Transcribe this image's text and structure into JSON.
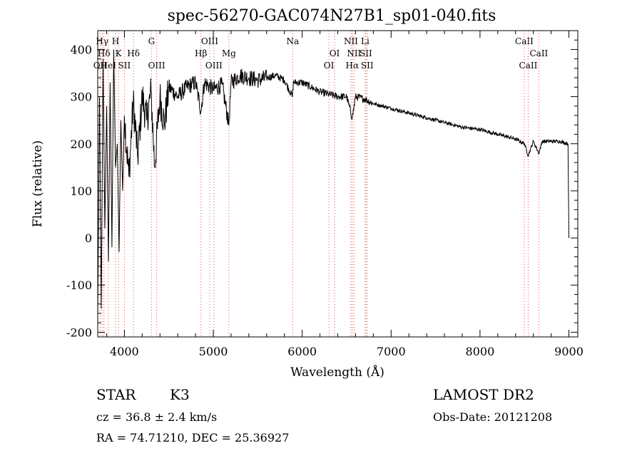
{
  "chart_data": {
    "type": "line",
    "title": "spec-56270-GAC074N27B1_sp01-040.fits",
    "xlabel": "Wavelength (Å)",
    "ylabel": "Flux (relative)",
    "xlim": [
      3700,
      9100
    ],
    "ylim": [
      -210,
      440
    ],
    "xticks": [
      4000,
      5000,
      6000,
      7000,
      8000,
      9000
    ],
    "xtick_labels": [
      "4000",
      "5000",
      "6000",
      "7000",
      "8000",
      "9000"
    ],
    "yticks": [
      -200,
      -100,
      0,
      100,
      200,
      300,
      400
    ],
    "ytick_labels": [
      "-200",
      "-100",
      "0",
      "100",
      "200",
      "300",
      "400"
    ],
    "grid": false,
    "spectrum": {
      "x": [
        3700,
        3720,
        3740,
        3760,
        3780,
        3800,
        3820,
        3840,
        3860,
        3880,
        3900,
        3920,
        3940,
        3960,
        3980,
        4000,
        4050,
        4100,
        4150,
        4200,
        4250,
        4300,
        4340,
        4400,
        4450,
        4500,
        4600,
        4700,
        4800,
        4861,
        4900,
        5000,
        5100,
        5175,
        5200,
        5300,
        5400,
        5500,
        5600,
        5700,
        5800,
        5890,
        5900,
        6000,
        6100,
        6200,
        6300,
        6400,
        6500,
        6563,
        6600,
        6700,
        6800,
        6900,
        7000,
        7200,
        7400,
        7600,
        7800,
        8000,
        8200,
        8400,
        8500,
        8542,
        8600,
        8662,
        8700,
        8800,
        8900,
        8990,
        9000
      ],
      "y": [
        -170,
        300,
        -150,
        380,
        20,
        280,
        -50,
        330,
        -20,
        400,
        150,
        200,
        -30,
        250,
        100,
        260,
        130,
        290,
        170,
        300,
        250,
        310,
        150,
        300,
        240,
        320,
        300,
        320,
        330,
        270,
        330,
        315,
        325,
        240,
        330,
        345,
        340,
        335,
        340,
        345,
        335,
        300,
        330,
        330,
        320,
        310,
        305,
        300,
        300,
        255,
        300,
        295,
        285,
        280,
        275,
        265,
        255,
        245,
        235,
        230,
        220,
        210,
        200,
        175,
        205,
        180,
        205,
        205,
        205,
        200,
        0
      ]
    },
    "line_markers": [
      {
        "label": "OII",
        "x": 3727,
        "row": 3
      },
      {
        "label": "Hγ",
        "x": 3750,
        "row": 0
      },
      {
        "label": "Hδ",
        "x": 3770,
        "row": 1
      },
      {
        "label": "HeI",
        "x": 3819,
        "row": 2
      },
      {
        "label": "H",
        "x": 3900,
        "row": 0
      },
      {
        "label": "K",
        "x": 3934,
        "row": 1
      },
      {
        "label": "SII",
        "x": 4000,
        "row": 2
      },
      {
        "label": "Hδ",
        "x": 4102,
        "row": 1
      },
      {
        "label": "G",
        "x": 4305,
        "row": 0
      },
      {
        "label": "OIII",
        "x": 4363,
        "row": 2
      },
      {
        "label": "Hβ",
        "x": 4861,
        "row": 1
      },
      {
        "label": "OIII",
        "x": 4959,
        "row": 0
      },
      {
        "label": "OIII",
        "x": 5007,
        "row": 2
      },
      {
        "label": "Mg",
        "x": 5175,
        "row": 1
      },
      {
        "label": "Na",
        "x": 5893,
        "row": 0
      },
      {
        "label": "OI",
        "x": 6300,
        "row": 2
      },
      {
        "label": "OI",
        "x": 6364,
        "row": 1
      },
      {
        "label": "NII",
        "x": 6548,
        "row": 0
      },
      {
        "label": "Hα",
        "x": 6563,
        "row": 2
      },
      {
        "label": "NII",
        "x": 6583,
        "row": 1
      },
      {
        "label": "Li",
        "x": 6708,
        "row": 0
      },
      {
        "label": "SII",
        "x": 6716,
        "row": 1
      },
      {
        "label": "SII",
        "x": 6731,
        "row": 2
      },
      {
        "label": "CaII",
        "x": 8498,
        "row": 0
      },
      {
        "label": "CaII",
        "x": 8542,
        "row": 2
      },
      {
        "label": "CaII",
        "x": 8662,
        "row": 1
      }
    ]
  },
  "info": {
    "object_class": "STAR",
    "subclass": "K3",
    "survey": "LAMOST DR2",
    "cz": "cz = 36.8 ± 2.4 km/s",
    "obs_date": "Obs-Date: 20121208",
    "coords": "RA =  74.71210, DEC =  25.36927"
  },
  "colors": {
    "line_marker": "#e05050",
    "spectrum": "#000000"
  }
}
